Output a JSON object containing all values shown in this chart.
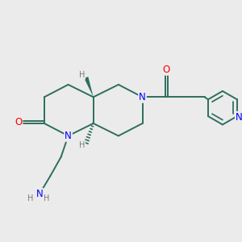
{
  "bg_color": "#ebebeb",
  "bond_color": "#2d6e5e",
  "N_color": "#0000ff",
  "O_color": "#ff0000",
  "H_color": "#7a7a7a",
  "line_width": 1.4,
  "figsize": [
    3.0,
    3.0
  ],
  "dpi": 100,
  "xlim": [
    0,
    10
  ],
  "ylim": [
    0,
    10
  ]
}
